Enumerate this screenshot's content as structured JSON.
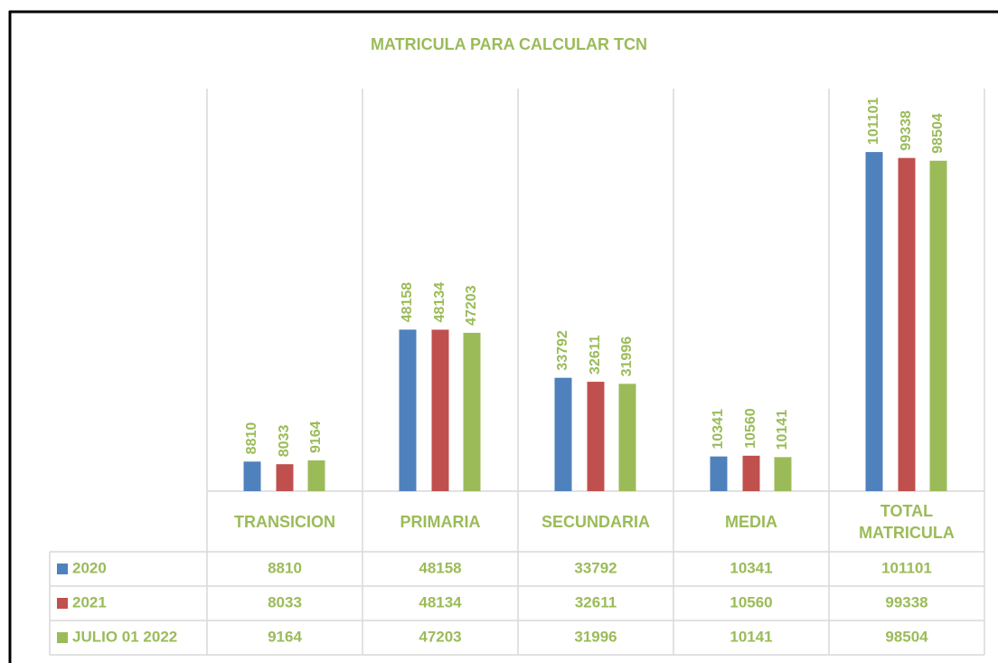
{
  "chart_data": {
    "type": "bar",
    "title": "MATRICULA PARA CALCULAR TCN",
    "categories": [
      "TRANSICION",
      "PRIMARIA",
      "SECUNDARIA",
      "MEDIA",
      "TOTAL MATRICULA"
    ],
    "series": [
      {
        "name": "2020",
        "color": "#4f81bd",
        "values": [
          8810,
          48158,
          33792,
          10341,
          101101
        ]
      },
      {
        "name": "2021",
        "color": "#c0504d",
        "values": [
          8033,
          48134,
          32611,
          10560,
          99338
        ]
      },
      {
        "name": "JULIO 01 2022",
        "color": "#9bbb59",
        "values": [
          9164,
          47203,
          31996,
          10141,
          98504
        ]
      }
    ],
    "ylim": [
      0,
      120000
    ],
    "text_color": "#9bbb59"
  }
}
